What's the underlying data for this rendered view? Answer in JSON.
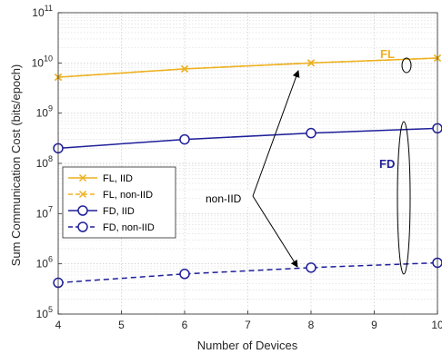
{
  "chart_data": {
    "type": "line",
    "xlabel": "Number of Devices",
    "ylabel": "Sum Communication Cost (bits/epoch)",
    "xlim": [
      4,
      10
    ],
    "ylim": [
      100000,
      100000000000
    ],
    "yscale": "log",
    "grid": true,
    "x_ticks": [
      "4",
      "5",
      "6",
      "7",
      "8",
      "9",
      "10"
    ],
    "y_ticks": [
      {
        "base": "10",
        "exp": "5"
      },
      {
        "base": "10",
        "exp": "6"
      },
      {
        "base": "10",
        "exp": "7"
      },
      {
        "base": "10",
        "exp": "8"
      },
      {
        "base": "10",
        "exp": "9"
      },
      {
        "base": "10",
        "exp": "10"
      },
      {
        "base": "10",
        "exp": "11"
      }
    ],
    "legend_position": "middle-left",
    "series": [
      {
        "name": "FL, IID",
        "color": "#EDB120",
        "style": "solid",
        "marker": "x",
        "x": [
          4,
          6,
          8,
          10
        ],
        "y": [
          5200000000,
          7600000000,
          10000000000,
          12500000000
        ]
      },
      {
        "name": "FL, non-IID",
        "color": "#EDB120",
        "style": "dashed",
        "marker": "x",
        "x": [
          4,
          6,
          8,
          10
        ],
        "y": [
          5200000000,
          7600000000,
          10000000000,
          12500000000
        ]
      },
      {
        "name": "FD, IID",
        "color": "#1F1F9A",
        "style": "solid",
        "marker": "o",
        "x": [
          4,
          6,
          8,
          10
        ],
        "y": [
          200000000,
          300000000,
          400000000,
          500000000
        ]
      },
      {
        "name": "FD, non-IID",
        "color": "#1F1F9A",
        "style": "dashed",
        "marker": "o",
        "x": [
          4,
          6,
          8,
          10
        ],
        "y": [
          420000,
          630000,
          840000,
          1050000
        ]
      }
    ],
    "annotations": {
      "fl_label": "FL",
      "fd_label": "FD",
      "noniid_label": "non-IID"
    }
  }
}
